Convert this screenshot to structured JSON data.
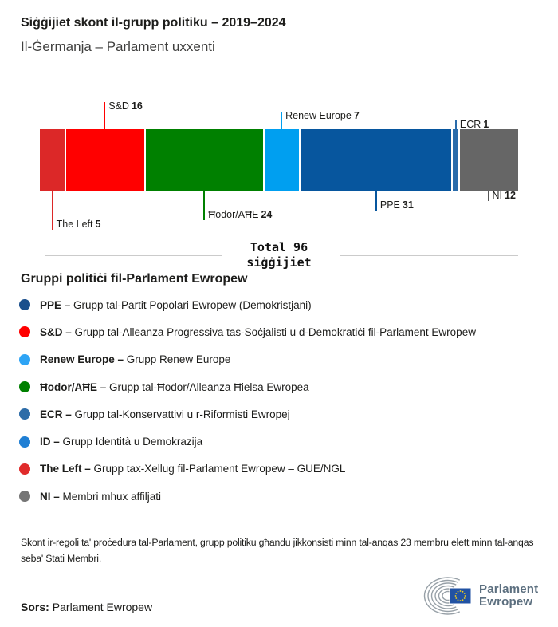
{
  "header": {
    "title": "Siġġijiet skont il-grupp politiku – 2019–2024",
    "subtitle": "Il-Ġermanja – Parlament uxxenti"
  },
  "chart_data": {
    "type": "bar",
    "variant": "horizontal-stacked-seat-composition",
    "title": "Siġġijiet skont il-grupp politiku – 2019–2024",
    "subtitle": "Il-Ġermanja – Parlament uxxenti",
    "total_seats": 96,
    "total_label_line1": "Total 96",
    "total_label_line2": "siġġijiet",
    "legend_position": "bottom",
    "segments": [
      {
        "group": "The Left",
        "seats": 5,
        "color": "#dc2828",
        "label_side": "below"
      },
      {
        "group": "S&D",
        "seats": 16,
        "color": "#ff0000",
        "label_side": "above"
      },
      {
        "group": "Ħodor/AĦE",
        "seats": 24,
        "color": "#008000",
        "label_side": "below"
      },
      {
        "group": "Renew Europe",
        "seats": 7,
        "color": "#009ff0",
        "label_side": "above"
      },
      {
        "group": "PPE",
        "seats": 31,
        "color": "#07569e",
        "label_side": "below"
      },
      {
        "group": "ECR",
        "seats": 1,
        "color": "#2a6cab",
        "label_side": "above"
      },
      {
        "group": "NI",
        "seats": 12,
        "color": "#666666",
        "label_side": "below"
      }
    ]
  },
  "legend": {
    "heading": "Gruppi politiċi fil-Parlament Ewropew",
    "separator": "–",
    "items": [
      {
        "name": "PPE",
        "color": "#1a4f8c",
        "description": "Grupp tal-Partit Popolari Ewropew (Demokristjani)"
      },
      {
        "name": "S&D",
        "color": "#ff0000",
        "description": "Grupp tal-Alleanza Progressiva tas-Soċjalisti u d-Demokratiċi fil-Parlament Ewropew"
      },
      {
        "name": "Renew Europe",
        "color": "#2ea4f5",
        "description": "Grupp Renew Europe"
      },
      {
        "name": "Ħodor/AĦE",
        "color": "#008000",
        "description": "Grupp tal-Ħodor/Alleanza Ħielsa Ewropea"
      },
      {
        "name": "ECR",
        "color": "#2d6ca8",
        "description": "Grupp tal-Konservattivi u r-Riformisti Ewropej"
      },
      {
        "name": "ID",
        "color": "#1f7fd4",
        "description": "Grupp Identità u Demokrazija"
      },
      {
        "name": "The Left",
        "color": "#e02b2b",
        "description": "Grupp tax-Xellug fil-Parlament Ewropew – GUE/NGL"
      },
      {
        "name": "NI",
        "color": "#757575",
        "description": "Membri mhux affiljati"
      }
    ]
  },
  "footer": {
    "note": "Skont ir-regoli ta' proċedura tal-Parlament, grupp politiku għandu jikkonsisti minn tal-anqas 23 membru elett minn tal-anqas seba' Stati Membri.",
    "source_label": "Sors:",
    "source_value": "Parlament Ewropew",
    "logo": {
      "line1": "Parlament",
      "line2": "Ewropew",
      "flag_color": "#2152a3",
      "star_color": "#f7d117",
      "arc_color": "#97a0a7",
      "text_color": "#5c6f7f"
    }
  }
}
